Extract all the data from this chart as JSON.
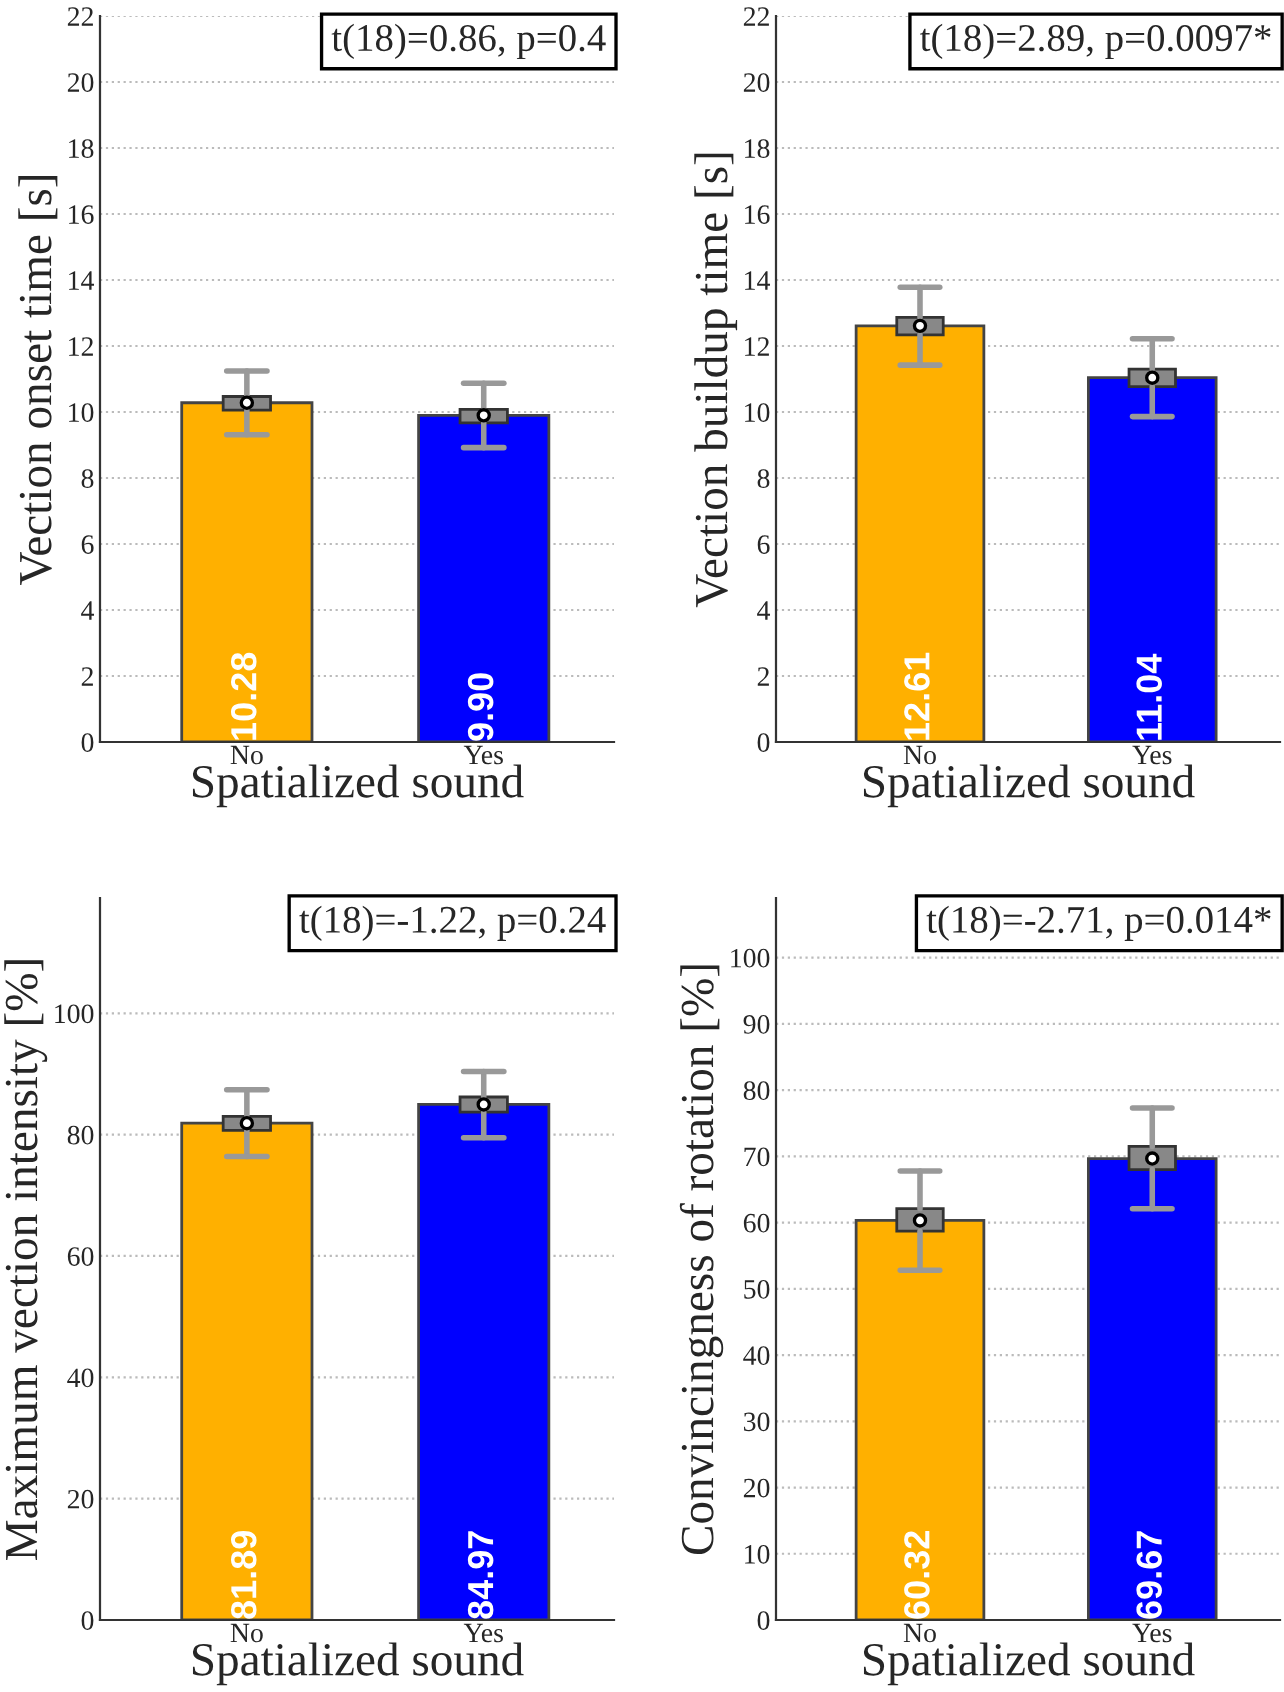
{
  "chart_data": [
    {
      "type": "bar",
      "xlabel": "Spatialized sound",
      "ylabel": "Vection onset time [s]",
      "categories": [
        "No",
        "Yes"
      ],
      "ylim": [
        0,
        22
      ],
      "yticks": [
        0,
        2,
        4,
        6,
        8,
        10,
        12,
        14,
        16,
        18,
        20,
        22
      ],
      "grid": "y",
      "annotations": [
        "t(18)=0.86, p=0.4"
      ],
      "series": [
        {
          "type": "bar",
          "colors": [
            "#ffb000",
            "#0000ff"
          ],
          "values": [
            10.28,
            9.9
          ],
          "value_labels": [
            "10.28",
            "9.90"
          ]
        },
        {
          "type": "box",
          "color": "#888888",
          "boxes": [
            {
              "low": 9.31,
              "q1": 10.06,
              "median": 10.28,
              "q3": 10.47,
              "high": 11.24
            },
            {
              "low": 8.92,
              "q1": 9.67,
              "median": 9.9,
              "q3": 10.08,
              "high": 10.87
            }
          ]
        }
      ]
    },
    {
      "type": "bar",
      "xlabel": "Spatialized sound",
      "ylabel": "Vection buildup time [s]",
      "categories": [
        "No",
        "Yes"
      ],
      "ylim": [
        0,
        22
      ],
      "yticks": [
        0,
        2,
        4,
        6,
        8,
        10,
        12,
        14,
        16,
        18,
        20,
        22
      ],
      "grid": "y",
      "annotations": [
        "t(18)=2.89, p=0.0097*"
      ],
      "series": [
        {
          "type": "bar",
          "colors": [
            "#ffb000",
            "#0000ff"
          ],
          "values": [
            12.61,
            11.04
          ],
          "value_labels": [
            "12.61",
            "11.04"
          ]
        },
        {
          "type": "box",
          "color": "#888888",
          "boxes": [
            {
              "low": 11.42,
              "q1": 12.34,
              "median": 12.61,
              "q3": 12.87,
              "high": 13.78
            },
            {
              "low": 9.86,
              "q1": 10.77,
              "median": 11.04,
              "q3": 11.3,
              "high": 12.22
            }
          ]
        }
      ]
    },
    {
      "type": "bar",
      "xlabel": "Spatialized sound",
      "ylabel": "Maximum vection intensity [%]",
      "categories": [
        "No",
        "Yes"
      ],
      "ylim": [
        0,
        119
      ],
      "yticks": [
        0,
        20,
        40,
        60,
        80,
        100
      ],
      "grid": "y",
      "annotations": [
        "t(18)=-1.22, p=0.24"
      ],
      "series": [
        {
          "type": "bar",
          "colors": [
            "#ffb000",
            "#0000ff"
          ],
          "values": [
            81.89,
            84.97
          ],
          "value_labels": [
            "81.89",
            "84.97"
          ]
        },
        {
          "type": "box",
          "color": "#888888",
          "boxes": [
            {
              "low": 76.4,
              "q1": 80.7,
              "median": 81.89,
              "q3": 83.0,
              "high": 87.4
            },
            {
              "low": 79.5,
              "q1": 83.7,
              "median": 84.97,
              "q3": 86.2,
              "high": 90.4
            }
          ]
        }
      ]
    },
    {
      "type": "bar",
      "xlabel": "Spatialized sound",
      "ylabel": "Convincingness of rotation [%]",
      "categories": [
        "No",
        "Yes"
      ],
      "ylim": [
        0,
        109
      ],
      "yticks": [
        0,
        10,
        20,
        30,
        40,
        50,
        60,
        70,
        80,
        90,
        100
      ],
      "grid": "y",
      "annotations": [
        "t(18)=-2.71, p=0.014*"
      ],
      "series": [
        {
          "type": "bar",
          "colors": [
            "#ffb000",
            "#0000ff"
          ],
          "values": [
            60.32,
            69.67
          ],
          "value_labels": [
            "60.32",
            "69.67"
          ]
        },
        {
          "type": "box",
          "color": "#888888",
          "boxes": [
            {
              "low": 52.8,
              "q1": 58.7,
              "median": 60.32,
              "q3": 62.1,
              "high": 67.8
            },
            {
              "low": 62.1,
              "q1": 68.0,
              "median": 69.67,
              "q3": 71.5,
              "high": 77.3
            }
          ]
        }
      ]
    }
  ]
}
